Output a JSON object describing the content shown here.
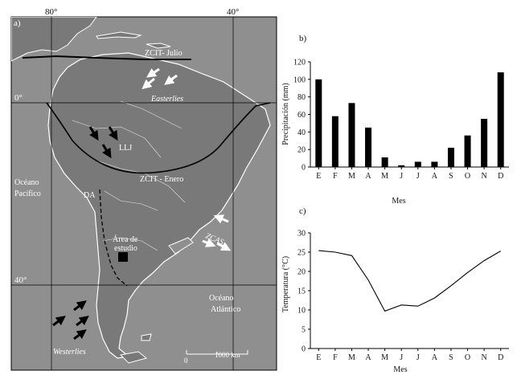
{
  "map": {
    "panel_label": "a)",
    "lon_labels": [
      "80°",
      "40°"
    ],
    "lat_labels": [
      "0°",
      "40°"
    ],
    "annotations": {
      "zcit_julio": "ZCIT- Julio",
      "easterlies": "Easterlies",
      "llj": "LLJ",
      "zcit_enero": "ZCIT - Enero",
      "oceano_pacifico_1": "Océano",
      "oceano_pacifico_2": "Pacífico",
      "da": "DA",
      "area_estudio_1": "Área de",
      "area_estudio_2": "estudio",
      "zcas": "ZCAS",
      "oceano_atlantico_1": "Océano",
      "oceano_atlantico_2": "Atlántico",
      "westerlies": "Westerlies"
    },
    "scale": {
      "start": "0",
      "end": "1000 km"
    },
    "colors": {
      "ocean": "#8f8f8f",
      "land": "#797979",
      "coast": "#ffffff",
      "zcit": "#000000"
    }
  },
  "chart_data": [
    {
      "type": "bar",
      "panel_label": "b)",
      "categories": [
        "E",
        "F",
        "M",
        "A",
        "M",
        "J",
        "J",
        "A",
        "S",
        "O",
        "N",
        "D"
      ],
      "values": [
        100,
        58,
        73,
        45,
        11,
        2,
        6,
        6,
        22,
        36,
        55,
        108
      ],
      "ylabel": "Precipitación (mm)",
      "xlabel": "Mes",
      "ylim": [
        0,
        120
      ],
      "yticks": [
        0,
        20,
        40,
        60,
        80,
        100,
        120
      ],
      "bar_color": "#000000"
    },
    {
      "type": "line",
      "panel_label": "c)",
      "categories": [
        "E",
        "F",
        "M",
        "A",
        "M",
        "J",
        "J",
        "A",
        "S",
        "O",
        "N",
        "D"
      ],
      "values": [
        25.4,
        25.0,
        24.1,
        17.8,
        9.7,
        11.3,
        11.0,
        13.1,
        16.3,
        19.7,
        22.8,
        25.3
      ],
      "ylabel": "Temperatura (°C)",
      "xlabel": "Mes",
      "ylim": [
        0,
        30
      ],
      "yticks": [
        0,
        5,
        10,
        15,
        20,
        25,
        30
      ],
      "line_color": "#000000"
    }
  ]
}
